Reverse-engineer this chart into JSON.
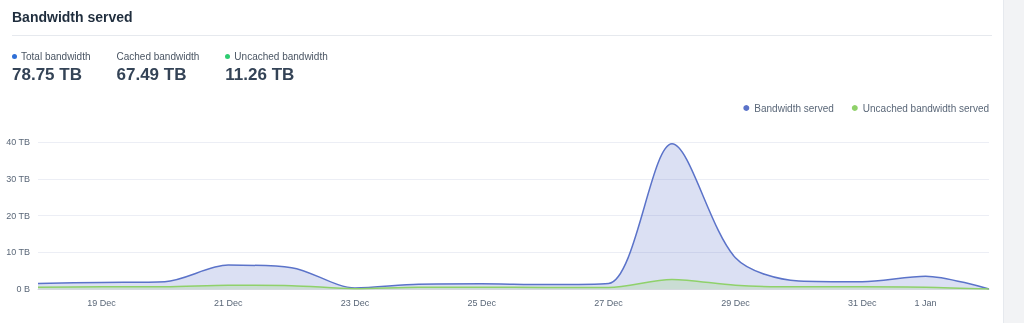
{
  "chart_data": {
    "type": "area",
    "title": "Bandwidth served",
    "annotations": [
      "Total bandwidth",
      "78.75 TB",
      "Cached bandwidth",
      "67.49 TB",
      "Uncached bandwidth",
      "11.26 TB"
    ],
    "categories": [
      null,
      "19 Dec",
      null,
      "21 Dec",
      null,
      "23 Dec",
      null,
      "25 Dec",
      null,
      "27 Dec",
      null,
      "29 Dec",
      null,
      "31 Dec",
      "1 Jan",
      null
    ],
    "series": [
      {
        "name": "Bandwidth served",
        "color": "#5b73c9",
        "values": [
          1.5,
          1.8,
          2.0,
          6.5,
          5.8,
          0.3,
          1.3,
          1.4,
          1.2,
          1.5,
          39.5,
          8.5,
          2.2,
          2.0,
          3.5,
          0
        ]
      },
      {
        "name": "Uncached bandwidth served",
        "color": "#8fd16a",
        "values": [
          0.5,
          0.6,
          0.6,
          1.0,
          0.9,
          0.1,
          0.5,
          0.5,
          0.4,
          0.4,
          2.6,
          1.0,
          0.6,
          0.6,
          0.5,
          0
        ]
      }
    ],
    "ylim": [
      0,
      40
    ],
    "yticks": [
      {
        "value": 0,
        "label": "0 B"
      },
      {
        "value": 10,
        "label": "10 TB"
      },
      {
        "value": 20,
        "label": "20 TB"
      },
      {
        "value": 30,
        "label": "30 TB"
      },
      {
        "value": 40,
        "label": "40 TB"
      }
    ],
    "grid": "y",
    "legend": "top right",
    "marker": "none"
  }
}
